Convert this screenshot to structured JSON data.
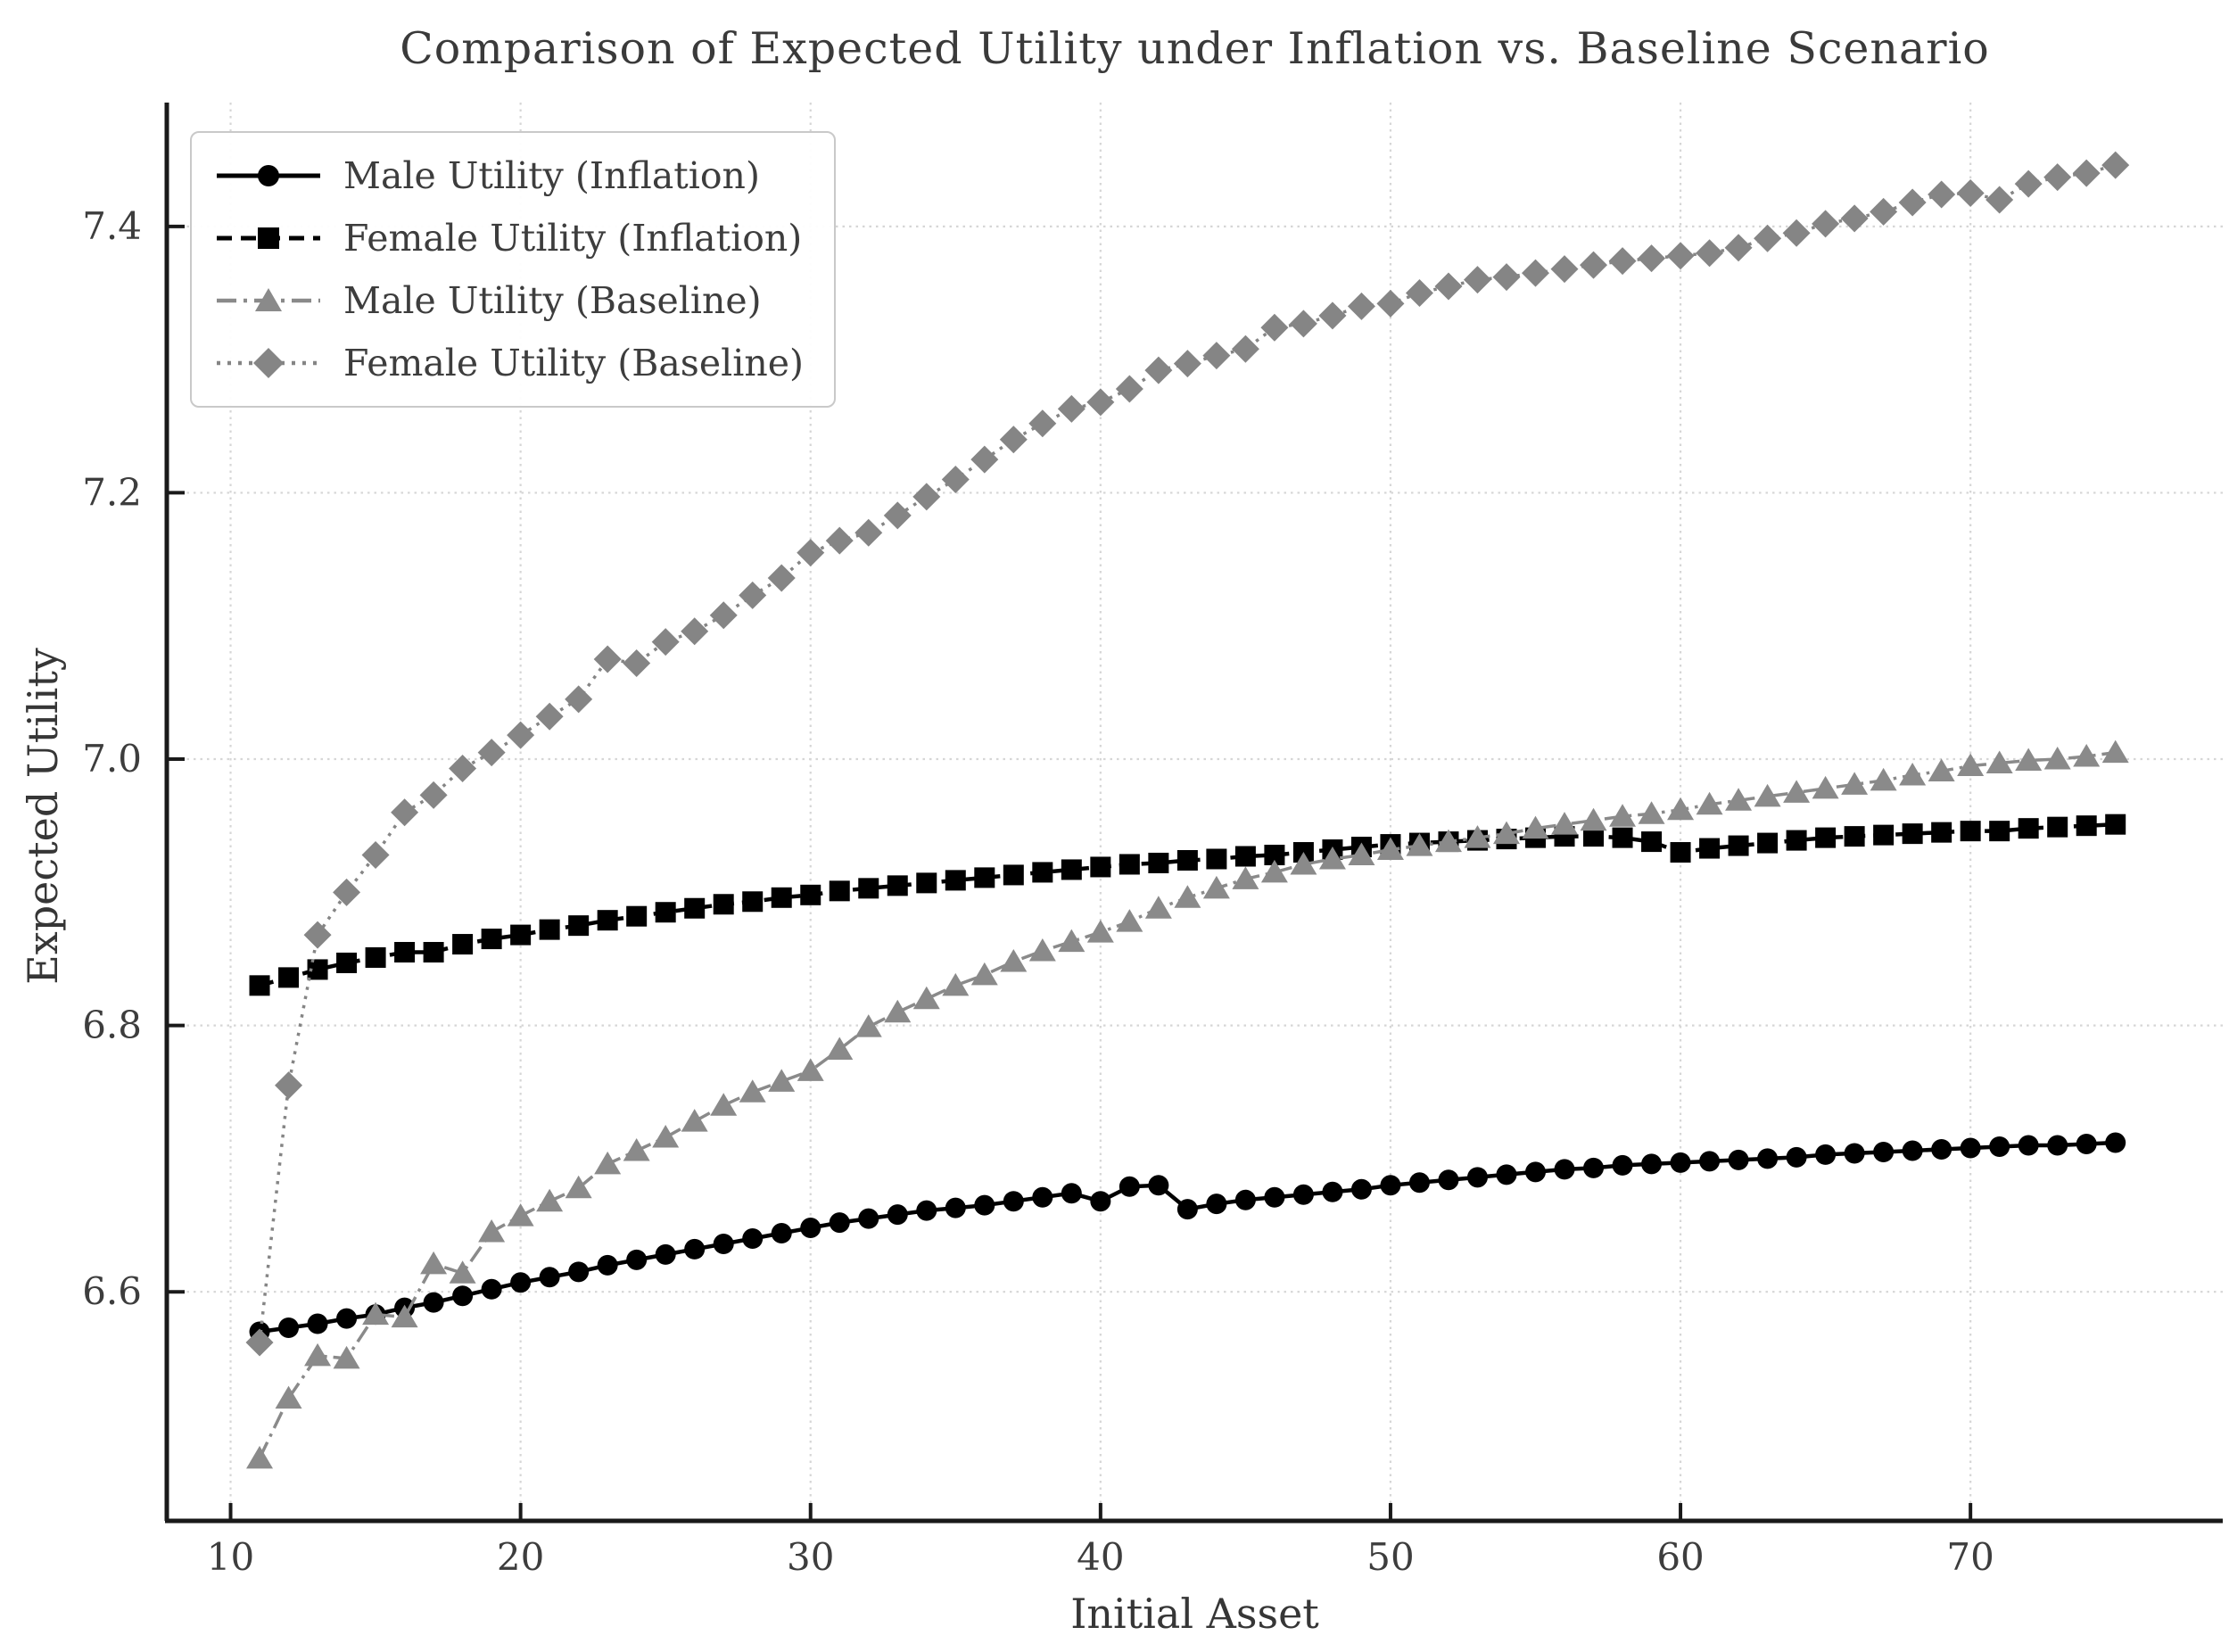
{
  "chart_data": {
    "type": "line",
    "title": "Comparison of Expected Utility under Inflation vs. Baseline Scenario",
    "xlabel": "Initial Asset",
    "ylabel": "Expected Utility",
    "xlim": [
      7.8,
      78.7
    ],
    "ylim": [
      6.428,
      7.493
    ],
    "x_ticks": [
      10,
      20,
      30,
      40,
      50,
      60,
      70
    ],
    "y_ticks": [
      6.6,
      6.8,
      7.0,
      7.2,
      7.4
    ],
    "grid": true,
    "legend_position": "upper left",
    "x": [
      11,
      12,
      13,
      14,
      15,
      16,
      17,
      18,
      19,
      20,
      21,
      22,
      23,
      24,
      25,
      26,
      27,
      28,
      29,
      30,
      31,
      32,
      33,
      34,
      35,
      36,
      37,
      38,
      39,
      40,
      41,
      42,
      43,
      44,
      45,
      46,
      47,
      48,
      49,
      50,
      51,
      52,
      53,
      54,
      55,
      56,
      57,
      58,
      59,
      60,
      61,
      62,
      63,
      64,
      65,
      66,
      67,
      68,
      69,
      70,
      71,
      72,
      73,
      74,
      75
    ],
    "series": [
      {
        "name": "Male Utility (Inflation)",
        "marker": "circle",
        "line": "solid",
        "color": "#000000",
        "values": [
          6.57,
          6.573,
          6.576,
          6.58,
          6.583,
          6.588,
          6.592,
          6.597,
          6.602,
          6.607,
          6.611,
          6.615,
          6.62,
          6.624,
          6.628,
          6.632,
          6.636,
          6.64,
          6.644,
          6.648,
          6.652,
          6.655,
          6.658,
          6.661,
          6.663,
          6.665,
          6.668,
          6.671,
          6.674,
          6.668,
          6.679,
          6.68,
          6.662,
          6.666,
          6.669,
          6.671,
          6.673,
          6.675,
          6.677,
          6.68,
          6.682,
          6.684,
          6.686,
          6.688,
          6.69,
          6.692,
          6.693,
          6.695,
          6.696,
          6.697,
          6.698,
          6.699,
          6.7,
          6.701,
          6.703,
          6.704,
          6.705,
          6.706,
          6.707,
          6.708,
          6.709,
          6.71,
          6.71,
          6.711,
          6.712
        ]
      },
      {
        "name": "Female Utility (Inflation)",
        "marker": "square",
        "line": "dashed",
        "color": "#000000",
        "values": [
          6.83,
          6.836,
          6.842,
          6.847,
          6.851,
          6.855,
          6.855,
          6.861,
          6.865,
          6.868,
          6.872,
          6.875,
          6.879,
          6.882,
          6.885,
          6.888,
          6.891,
          6.893,
          6.896,
          6.898,
          6.901,
          6.903,
          6.905,
          6.907,
          6.909,
          6.911,
          6.913,
          6.915,
          6.917,
          6.919,
          6.921,
          6.922,
          6.924,
          6.925,
          6.927,
          6.928,
          6.93,
          6.932,
          6.934,
          6.936,
          6.937,
          6.938,
          6.939,
          6.94,
          6.941,
          6.942,
          6.942,
          6.941,
          6.938,
          6.93,
          6.933,
          6.935,
          6.937,
          6.939,
          6.941,
          6.942,
          6.943,
          6.944,
          6.945,
          6.946,
          6.946,
          6.948,
          6.949,
          6.95,
          6.951
        ]
      },
      {
        "name": "Male Utility (Baseline)",
        "marker": "triangle",
        "line": "dashdot",
        "color": "#8a8a8a",
        "values": [
          6.475,
          6.52,
          6.552,
          6.55,
          6.583,
          6.581,
          6.621,
          6.614,
          6.645,
          6.657,
          6.668,
          6.678,
          6.696,
          6.706,
          6.716,
          6.728,
          6.74,
          6.75,
          6.758,
          6.766,
          6.782,
          6.799,
          6.81,
          6.82,
          6.83,
          6.838,
          6.848,
          6.856,
          6.863,
          6.87,
          6.878,
          6.888,
          6.896,
          6.903,
          6.91,
          6.915,
          6.921,
          6.925,
          6.928,
          6.932,
          6.935,
          6.938,
          6.941,
          6.944,
          6.948,
          6.951,
          6.954,
          6.957,
          6.959,
          6.962,
          6.966,
          6.969,
          6.972,
          6.975,
          6.978,
          6.981,
          6.984,
          6.988,
          6.991,
          6.995,
          6.997,
          6.999,
          7.0,
          7.002,
          7.005
        ]
      },
      {
        "name": "Female Utility (Baseline)",
        "marker": "diamond",
        "line": "dotted",
        "color": "#858585",
        "values": [
          6.562,
          6.755,
          6.868,
          6.9,
          6.928,
          6.96,
          6.973,
          6.993,
          7.005,
          7.018,
          7.032,
          7.045,
          7.075,
          7.072,
          7.088,
          7.096,
          7.108,
          7.123,
          7.136,
          7.155,
          7.164,
          7.17,
          7.183,
          7.197,
          7.21,
          7.225,
          7.24,
          7.252,
          7.263,
          7.268,
          7.278,
          7.292,
          7.297,
          7.303,
          7.308,
          7.324,
          7.327,
          7.333,
          7.34,
          7.342,
          7.35,
          7.355,
          7.36,
          7.362,
          7.365,
          7.368,
          7.371,
          7.374,
          7.376,
          7.378,
          7.38,
          7.384,
          7.391,
          7.395,
          7.402,
          7.406,
          7.411,
          7.418,
          7.424,
          7.425,
          7.42,
          7.432,
          7.437,
          7.44,
          7.446
        ]
      }
    ],
    "colors": {
      "grid": "#d6d6d6",
      "spine": "#1a1a1a",
      "tick_text": "#3d3d3d"
    }
  }
}
